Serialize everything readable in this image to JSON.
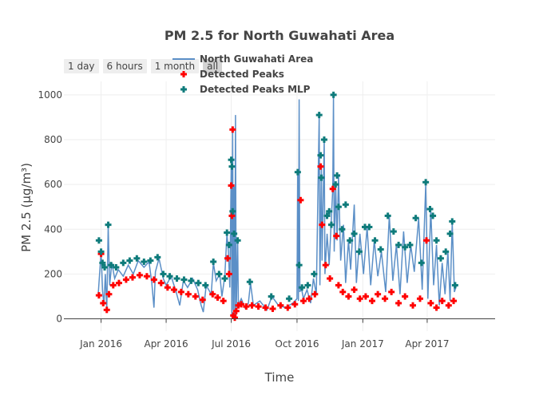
{
  "range_selector": {
    "buttons": [
      {
        "label": "1 day",
        "active": false
      },
      {
        "label": "6 hours",
        "active": false
      },
      {
        "label": "1 month",
        "active": false
      },
      {
        "label": "all",
        "active": true
      }
    ]
  },
  "colors": {
    "line": "#5b8fc7",
    "peaks": "#ff0000",
    "peaks_mlp": "#0e7b7b",
    "grid": "#eeeeee",
    "axis": "#444444",
    "button_bg": "#eeeeee",
    "button_active_bg": "#d4d4d4"
  },
  "chart_data": {
    "type": "line",
    "title": "PM 2.5 for North Guwahati Area",
    "xlabel": "Time",
    "ylabel": "PM 2.5 (μg/m³)",
    "xlim": [
      "2015-11-10",
      "2017-07-05"
    ],
    "ylim": [
      -55,
      1060
    ],
    "y_ticks": [
      0,
      200,
      400,
      600,
      800,
      1000
    ],
    "x_ticks": [
      {
        "date": "2016-01-01",
        "label": "Jan 2016"
      },
      {
        "date": "2016-04-01",
        "label": "Apr 2016"
      },
      {
        "date": "2016-07-01",
        "label": "Jul 2016"
      },
      {
        "date": "2016-10-01",
        "label": "Oct 2016"
      },
      {
        "date": "2017-01-01",
        "label": "Jan 2017"
      },
      {
        "date": "2017-04-01",
        "label": "Apr 2017"
      }
    ],
    "grid": true,
    "legend_position": "top",
    "series": [
      {
        "name": "North Guwahati Area",
        "mode": "lines",
        "points": [
          [
            "2015-12-28",
            110
          ],
          [
            "2016-01-01",
            300
          ],
          [
            "2016-01-03",
            130
          ],
          [
            "2016-01-05",
            60
          ],
          [
            "2016-01-07",
            200
          ],
          [
            "2016-01-09",
            40
          ],
          [
            "2016-01-11",
            415
          ],
          [
            "2016-01-13",
            150
          ],
          [
            "2016-01-16",
            250
          ],
          [
            "2016-01-20",
            180
          ],
          [
            "2016-01-25",
            220
          ],
          [
            "2016-02-01",
            190
          ],
          [
            "2016-02-08",
            240
          ],
          [
            "2016-02-15",
            200
          ],
          [
            "2016-02-22",
            260
          ],
          [
            "2016-03-01",
            230
          ],
          [
            "2016-03-08",
            255
          ],
          [
            "2016-03-12",
            160
          ],
          [
            "2016-03-15",
            50
          ],
          [
            "2016-03-17",
            210
          ],
          [
            "2016-03-22",
            270
          ],
          [
            "2016-03-28",
            180
          ],
          [
            "2016-04-01",
            150
          ],
          [
            "2016-04-08",
            190
          ],
          [
            "2016-04-15",
            120
          ],
          [
            "2016-04-20",
            60
          ],
          [
            "2016-04-25",
            170
          ],
          [
            "2016-05-01",
            140
          ],
          [
            "2016-05-08",
            180
          ],
          [
            "2016-05-15",
            130
          ],
          [
            "2016-05-20",
            60
          ],
          [
            "2016-05-23",
            30
          ],
          [
            "2016-05-27",
            150
          ],
          [
            "2016-06-03",
            110
          ],
          [
            "2016-06-06",
            250
          ],
          [
            "2016-06-10",
            170
          ],
          [
            "2016-06-15",
            200
          ],
          [
            "2016-06-18",
            100
          ],
          [
            "2016-06-22",
            190
          ],
          [
            "2016-06-25",
            380
          ],
          [
            "2016-06-27",
            300
          ],
          [
            "2016-06-29",
            140
          ],
          [
            "2016-07-01",
            700
          ],
          [
            "2016-07-02",
            10
          ],
          [
            "2016-07-03",
            850
          ],
          [
            "2016-07-04",
            40
          ],
          [
            "2016-07-05",
            590
          ],
          [
            "2016-07-06",
            0
          ],
          [
            "2016-07-07",
            910
          ],
          [
            "2016-07-08",
            20
          ],
          [
            "2016-07-10",
            350
          ],
          [
            "2016-07-11",
            60
          ],
          [
            "2016-07-15",
            90
          ],
          [
            "2016-07-20",
            50
          ],
          [
            "2016-07-25",
            70
          ],
          [
            "2016-07-28",
            160
          ],
          [
            "2016-08-01",
            60
          ],
          [
            "2016-08-10",
            80
          ],
          [
            "2016-08-20",
            40
          ],
          [
            "2016-08-27",
            100
          ],
          [
            "2016-09-05",
            60
          ],
          [
            "2016-09-15",
            50
          ],
          [
            "2016-09-25",
            70
          ],
          [
            "2016-10-01",
            90
          ],
          [
            "2016-10-02",
            650
          ],
          [
            "2016-10-03",
            80
          ],
          [
            "2016-10-04",
            980
          ],
          [
            "2016-10-05",
            120
          ],
          [
            "2016-10-07",
            140
          ],
          [
            "2016-10-10",
            90
          ],
          [
            "2016-10-15",
            130
          ],
          [
            "2016-10-20",
            70
          ],
          [
            "2016-10-24",
            180
          ],
          [
            "2016-10-28",
            110
          ],
          [
            "2016-11-01",
            910
          ],
          [
            "2016-11-02",
            150
          ],
          [
            "2016-11-04",
            680
          ],
          [
            "2016-11-05",
            260
          ],
          [
            "2016-11-08",
            800
          ],
          [
            "2016-11-09",
            200
          ],
          [
            "2016-11-12",
            380
          ],
          [
            "2016-11-15",
            240
          ],
          [
            "2016-11-20",
            580
          ],
          [
            "2016-11-21",
            1000
          ],
          [
            "2016-11-22",
            300
          ],
          [
            "2016-11-24",
            600
          ],
          [
            "2016-11-26",
            350
          ],
          [
            "2016-11-28",
            640
          ],
          [
            "2016-12-01",
            260
          ],
          [
            "2016-12-05",
            420
          ],
          [
            "2016-12-08",
            160
          ],
          [
            "2016-12-12",
            350
          ],
          [
            "2016-12-15",
            220
          ],
          [
            "2016-12-20",
            510
          ],
          [
            "2016-12-23",
            160
          ],
          [
            "2016-12-28",
            380
          ],
          [
            "2017-01-02",
            200
          ],
          [
            "2017-01-07",
            410
          ],
          [
            "2017-01-12",
            150
          ],
          [
            "2017-01-17",
            350
          ],
          [
            "2017-01-22",
            190
          ],
          [
            "2017-01-27",
            300
          ],
          [
            "2017-02-02",
            120
          ],
          [
            "2017-02-07",
            460
          ],
          [
            "2017-02-12",
            170
          ],
          [
            "2017-02-17",
            330
          ],
          [
            "2017-02-22",
            110
          ],
          [
            "2017-02-27",
            390
          ],
          [
            "2017-03-04",
            160
          ],
          [
            "2017-03-09",
            330
          ],
          [
            "2017-03-14",
            210
          ],
          [
            "2017-03-20",
            450
          ],
          [
            "2017-03-25",
            130
          ],
          [
            "2017-03-30",
            600
          ],
          [
            "2017-04-02",
            90
          ],
          [
            "2017-04-06",
            490
          ],
          [
            "2017-04-10",
            150
          ],
          [
            "2017-04-14",
            330
          ],
          [
            "2017-04-18",
            60
          ],
          [
            "2017-04-22",
            250
          ],
          [
            "2017-04-26",
            110
          ],
          [
            "2017-04-30",
            300
          ],
          [
            "2017-05-03",
            80
          ],
          [
            "2017-05-06",
            430
          ],
          [
            "2017-05-09",
            120
          ],
          [
            "2017-05-12",
            150
          ]
        ]
      },
      {
        "name": "Detected Peaks",
        "mode": "markers",
        "points": [
          [
            "2015-12-29",
            105
          ],
          [
            "2016-01-01",
            290
          ],
          [
            "2016-01-04",
            70
          ],
          [
            "2016-01-09",
            40
          ],
          [
            "2016-01-12",
            110
          ],
          [
            "2016-01-18",
            150
          ],
          [
            "2016-01-26",
            160
          ],
          [
            "2016-02-05",
            175
          ],
          [
            "2016-02-14",
            185
          ],
          [
            "2016-02-24",
            195
          ],
          [
            "2016-03-05",
            190
          ],
          [
            "2016-03-15",
            175
          ],
          [
            "2016-03-25",
            160
          ],
          [
            "2016-04-03",
            140
          ],
          [
            "2016-04-12",
            130
          ],
          [
            "2016-04-22",
            120
          ],
          [
            "2016-05-02",
            110
          ],
          [
            "2016-05-12",
            100
          ],
          [
            "2016-05-22",
            85
          ],
          [
            "2016-06-05",
            110
          ],
          [
            "2016-06-12",
            95
          ],
          [
            "2016-06-20",
            80
          ],
          [
            "2016-06-26",
            270
          ],
          [
            "2016-06-28",
            200
          ],
          [
            "2016-07-01",
            595
          ],
          [
            "2016-07-02",
            460
          ],
          [
            "2016-07-03",
            845
          ],
          [
            "2016-07-04",
            15
          ],
          [
            "2016-07-06",
            5
          ],
          [
            "2016-07-08",
            35
          ],
          [
            "2016-07-11",
            60
          ],
          [
            "2016-07-15",
            65
          ],
          [
            "2016-07-22",
            55
          ],
          [
            "2016-07-30",
            60
          ],
          [
            "2016-08-08",
            55
          ],
          [
            "2016-08-18",
            50
          ],
          [
            "2016-08-28",
            45
          ],
          [
            "2016-09-08",
            60
          ],
          [
            "2016-09-18",
            50
          ],
          [
            "2016-09-28",
            65
          ],
          [
            "2016-10-06",
            530
          ],
          [
            "2016-10-10",
            80
          ],
          [
            "2016-10-18",
            90
          ],
          [
            "2016-10-26",
            110
          ],
          [
            "2016-11-03",
            680
          ],
          [
            "2016-11-05",
            420
          ],
          [
            "2016-11-10",
            240
          ],
          [
            "2016-11-16",
            180
          ],
          [
            "2016-11-20",
            580
          ],
          [
            "2016-11-25",
            370
          ],
          [
            "2016-11-28",
            150
          ],
          [
            "2016-12-04",
            120
          ],
          [
            "2016-12-12",
            100
          ],
          [
            "2016-12-20",
            130
          ],
          [
            "2016-12-28",
            90
          ],
          [
            "2017-01-05",
            100
          ],
          [
            "2017-01-14",
            80
          ],
          [
            "2017-01-22",
            110
          ],
          [
            "2017-02-01",
            90
          ],
          [
            "2017-02-10",
            120
          ],
          [
            "2017-02-20",
            70
          ],
          [
            "2017-03-01",
            100
          ],
          [
            "2017-03-12",
            60
          ],
          [
            "2017-03-22",
            90
          ],
          [
            "2017-03-31",
            350
          ],
          [
            "2017-04-06",
            70
          ],
          [
            "2017-04-14",
            50
          ],
          [
            "2017-04-22",
            80
          ],
          [
            "2017-05-01",
            60
          ],
          [
            "2017-05-08",
            80
          ]
        ]
      },
      {
        "name": "Detected Peaks MLP",
        "mode": "markers",
        "points": [
          [
            "2015-12-29",
            350
          ],
          [
            "2016-01-01",
            300
          ],
          [
            "2016-01-03",
            250
          ],
          [
            "2016-01-06",
            230
          ],
          [
            "2016-01-11",
            420
          ],
          [
            "2016-01-15",
            240
          ],
          [
            "2016-01-22",
            230
          ],
          [
            "2016-02-01",
            250
          ],
          [
            "2016-02-10",
            260
          ],
          [
            "2016-02-20",
            270
          ],
          [
            "2016-03-01",
            255
          ],
          [
            "2016-03-10",
            260
          ],
          [
            "2016-03-20",
            275
          ],
          [
            "2016-03-28",
            200
          ],
          [
            "2016-04-06",
            190
          ],
          [
            "2016-04-16",
            180
          ],
          [
            "2016-04-26",
            175
          ],
          [
            "2016-05-06",
            170
          ],
          [
            "2016-05-16",
            160
          ],
          [
            "2016-05-26",
            150
          ],
          [
            "2016-06-06",
            255
          ],
          [
            "2016-06-14",
            200
          ],
          [
            "2016-06-22",
            180
          ],
          [
            "2016-06-25",
            385
          ],
          [
            "2016-06-28",
            330
          ],
          [
            "2016-07-01",
            710
          ],
          [
            "2016-07-02",
            680
          ],
          [
            "2016-07-03",
            480
          ],
          [
            "2016-07-05",
            380
          ],
          [
            "2016-07-10",
            350
          ],
          [
            "2016-07-27",
            165
          ],
          [
            "2016-08-26",
            100
          ],
          [
            "2016-09-20",
            90
          ],
          [
            "2016-10-02",
            655
          ],
          [
            "2016-10-04",
            240
          ],
          [
            "2016-10-08",
            140
          ],
          [
            "2016-10-16",
            150
          ],
          [
            "2016-10-25",
            200
          ],
          [
            "2016-11-01",
            910
          ],
          [
            "2016-11-03",
            730
          ],
          [
            "2016-11-04",
            630
          ],
          [
            "2016-11-08",
            800
          ],
          [
            "2016-11-12",
            460
          ],
          [
            "2016-11-15",
            480
          ],
          [
            "2016-11-18",
            420
          ],
          [
            "2016-11-21",
            1000
          ],
          [
            "2016-11-24",
            600
          ],
          [
            "2016-11-26",
            640
          ],
          [
            "2016-11-28",
            500
          ],
          [
            "2016-12-03",
            400
          ],
          [
            "2016-12-08",
            510
          ],
          [
            "2016-12-14",
            350
          ],
          [
            "2016-12-20",
            380
          ],
          [
            "2016-12-27",
            300
          ],
          [
            "2017-01-04",
            410
          ],
          [
            "2017-01-10",
            410
          ],
          [
            "2017-01-18",
            350
          ],
          [
            "2017-01-26",
            310
          ],
          [
            "2017-02-05",
            460
          ],
          [
            "2017-02-13",
            390
          ],
          [
            "2017-02-20",
            330
          ],
          [
            "2017-03-01",
            320
          ],
          [
            "2017-03-08",
            330
          ],
          [
            "2017-03-16",
            450
          ],
          [
            "2017-03-24",
            250
          ],
          [
            "2017-03-30",
            610
          ],
          [
            "2017-04-05",
            490
          ],
          [
            "2017-04-09",
            460
          ],
          [
            "2017-04-14",
            350
          ],
          [
            "2017-04-20",
            270
          ],
          [
            "2017-04-27",
            300
          ],
          [
            "2017-05-03",
            380
          ],
          [
            "2017-05-06",
            435
          ],
          [
            "2017-05-10",
            150
          ]
        ]
      }
    ]
  }
}
